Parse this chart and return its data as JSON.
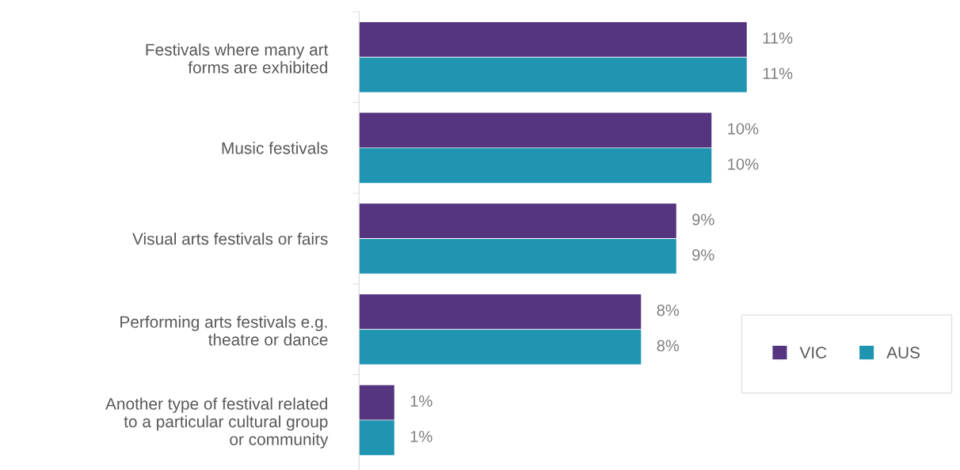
{
  "chart_data": {
    "type": "bar",
    "orientation": "horizontal",
    "categories": [
      "Festivals where many art\nforms are exhibited",
      "Music festivals",
      "Visual arts festivals or fairs",
      "Performing arts festivals e.g.\ntheatre or dance",
      "Another type of festival related\nto a particular cultural group\nor community"
    ],
    "series": [
      {
        "name": "VIC",
        "color": "#55357f",
        "values": [
          11,
          10,
          9,
          8,
          1
        ],
        "value_labels": [
          "11%",
          "10%",
          "9%",
          "8%",
          "1%"
        ]
      },
      {
        "name": "AUS",
        "color": "#1f95b2",
        "values": [
          11,
          10,
          9,
          8,
          1
        ],
        "value_labels": [
          "11%",
          "10%",
          "9%",
          "8%",
          "1%"
        ]
      }
    ],
    "legend": "lower right",
    "grid": false
  }
}
